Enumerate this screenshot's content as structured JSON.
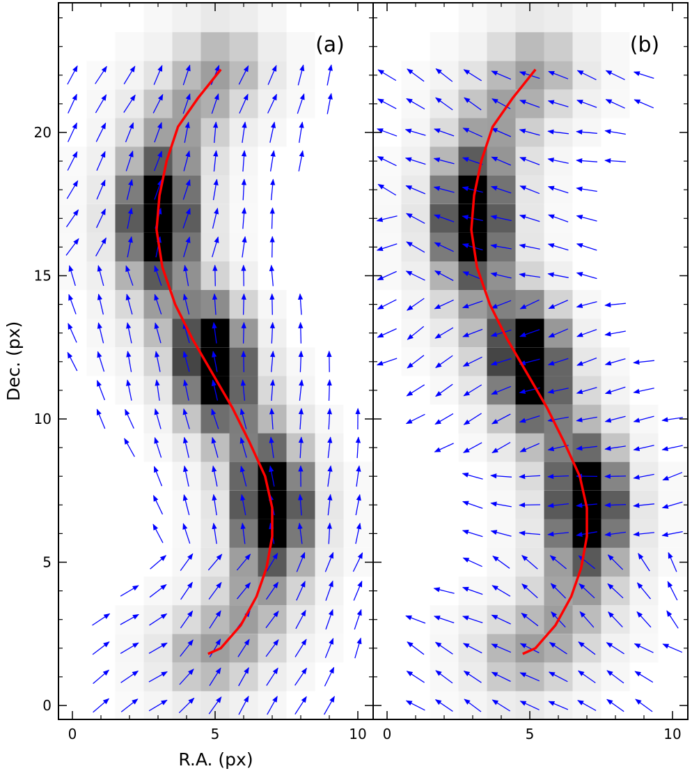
{
  "chart_data": {
    "type": "heatmap",
    "description_free": true,
    "xlabel": "R.A. (px)",
    "ylabel": "Dec. (px)",
    "xlim": [
      -0.5,
      10.5
    ],
    "ylim": [
      -0.5,
      24.5
    ],
    "xticks": [
      0,
      5,
      10
    ],
    "yticks": [
      0,
      5,
      10,
      15,
      20
    ],
    "arrow_color": "#0000ff",
    "curve_color": "#ff0000",
    "panels": [
      {
        "label": "(a)",
        "arrow_field": "a",
        "intensity_peaks": [
          {
            "x": 3,
            "y": 17,
            "amp": 1.0
          },
          {
            "x": 5,
            "y": 12,
            "amp": 1.0
          },
          {
            "x": 7,
            "y": 7,
            "amp": 1.0
          }
        ]
      },
      {
        "label": "(b)",
        "arrow_field": "b",
        "intensity_peaks": [
          {
            "x": 3,
            "y": 17,
            "amp": 1.0
          },
          {
            "x": 5,
            "y": 12,
            "amp": 1.0
          },
          {
            "x": 7,
            "y": 7,
            "amp": 1.0
          }
        ]
      }
    ],
    "ridge_curve": {
      "x": [
        5.2,
        4.4,
        3.7,
        3.3,
        3.05,
        2.95,
        3.15,
        3.6,
        4.2,
        4.9,
        5.6,
        6.2,
        6.75,
        7.0,
        7.0,
        6.8,
        6.45,
        5.9,
        5.2,
        4.75
      ],
      "y": [
        22.2,
        21.2,
        20.2,
        19.0,
        17.8,
        16.6,
        15.3,
        14.0,
        12.8,
        11.6,
        10.4,
        9.2,
        8.0,
        6.9,
        5.9,
        4.8,
        3.8,
        2.8,
        2.0,
        1.8
      ]
    }
  }
}
